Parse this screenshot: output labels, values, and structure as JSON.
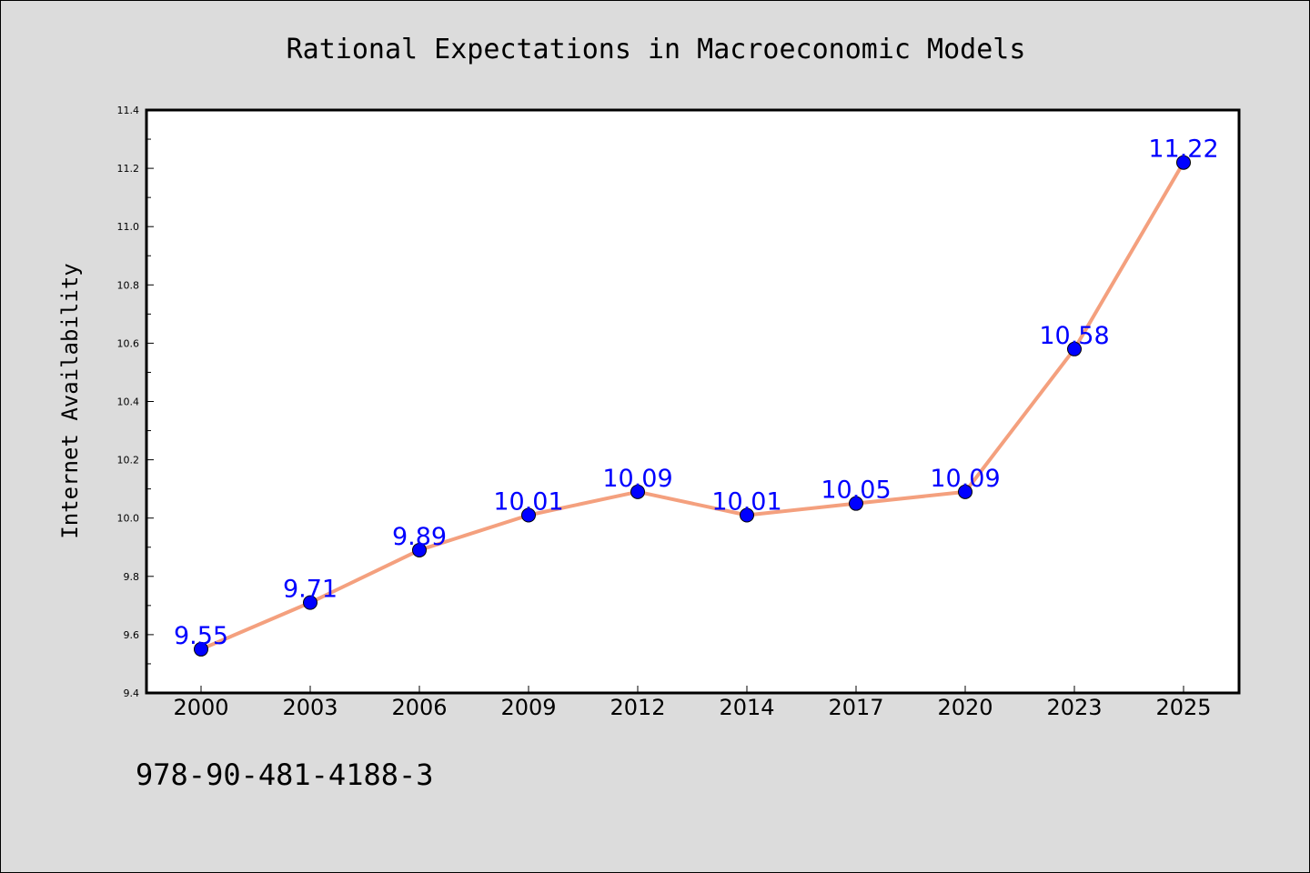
{
  "chart_data": {
    "type": "line",
    "title": "Rational Expectations in Macroeconomic Models",
    "xlabel": "",
    "ylabel": "Internet Availability",
    "categories": [
      "2000",
      "2003",
      "2006",
      "2009",
      "2012",
      "2014",
      "2017",
      "2020",
      "2023",
      "2025"
    ],
    "series": [
      {
        "values": [
          9.55,
          9.71,
          9.89,
          10.01,
          10.09,
          10.01,
          10.05,
          10.09,
          10.58,
          11.22
        ],
        "labels": [
          "9.55",
          "9.71",
          "9.89",
          "10.01",
          "10.09",
          "10.01",
          "10.05",
          "10.09",
          "10.58",
          "11.22"
        ],
        "line_color": "#f4a07e",
        "marker_color": "#0000ff"
      }
    ],
    "ylim": [
      9.4,
      11.4
    ],
    "yticks": [
      "9.4",
      "9.6",
      "9.8",
      "10.0",
      "10.2",
      "10.4",
      "10.6",
      "10.8",
      "11.0",
      "11.2",
      "11.4"
    ],
    "grid": false,
    "legend": "none",
    "label_color": "#0000ff"
  },
  "footer": {
    "code": "978-90-481-4188-3"
  },
  "colors": {
    "background": "#dcdcdc",
    "plot_background": "#ffffff"
  }
}
